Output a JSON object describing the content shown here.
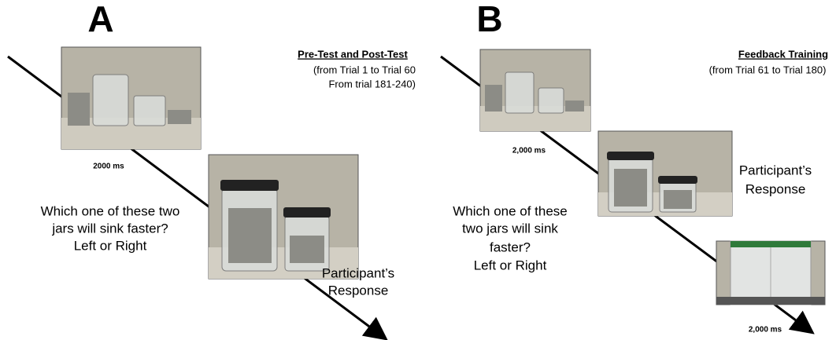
{
  "panels": [
    {
      "label": "A",
      "heading": "Pre-Test and Post-Test",
      "notes": [
        "(from Trial 1 to Trial 60",
        "From trial 181-240)"
      ],
      "durations": [
        "2000 ms"
      ],
      "question": [
        "Which one of these two",
        "jars will sink faster?",
        "Left or Right"
      ],
      "response": [
        "Participant’s",
        "Response"
      ]
    },
    {
      "label": "B",
      "heading": "Feedback Training",
      "notes": [
        "(from Trial 61 to Trial 180)"
      ],
      "durations": [
        "2,000 ms",
        "2,000 ms"
      ],
      "question": [
        "Which one of these",
        "two jars will sink",
        "faster?",
        "Left or Right"
      ],
      "response": [
        "Participant’s",
        "Response"
      ]
    }
  ]
}
